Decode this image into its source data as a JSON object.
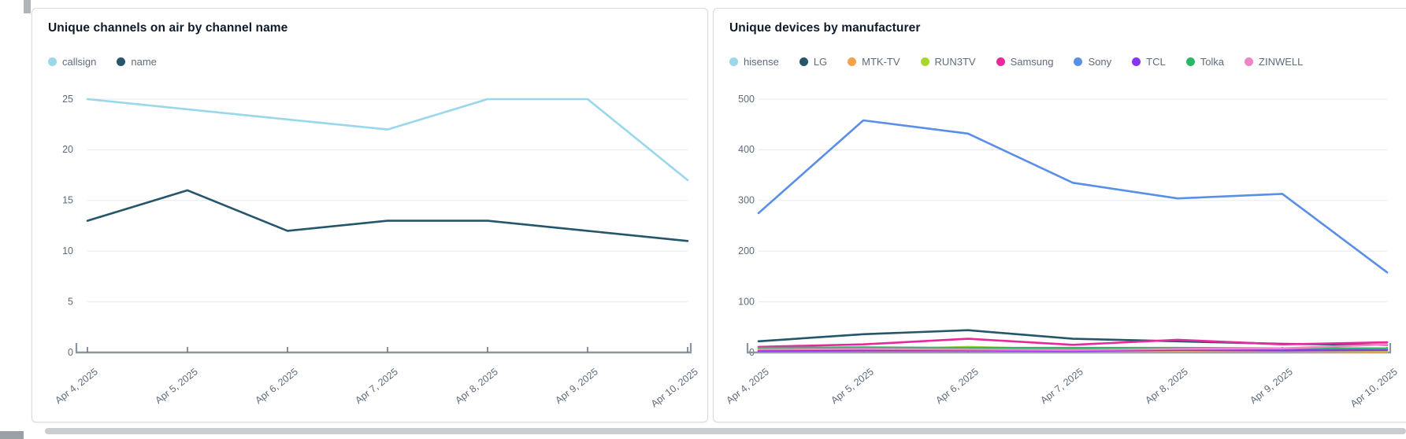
{
  "chart_data": [
    {
      "type": "line",
      "title": "Unique channels on air by channel name",
      "categories": [
        "Apr 4, 2025",
        "Apr 5, 2025",
        "Apr 6, 2025",
        "Apr 7, 2025",
        "Apr 8, 2025",
        "Apr 9, 2025",
        "Apr 10, 2025"
      ],
      "series": [
        {
          "name": "callsign",
          "color": "#99d7ea",
          "values": [
            25,
            24,
            23,
            22,
            25,
            25,
            17
          ]
        },
        {
          "name": "name",
          "color": "#25566b",
          "values": [
            13,
            16,
            12,
            13,
            13,
            12,
            11
          ]
        }
      ],
      "ylim": [
        0,
        25
      ],
      "yticks": [
        0,
        5,
        10,
        15,
        20,
        25
      ],
      "xlabel": "",
      "ylabel": "",
      "grid": true,
      "legend_position": "top-left"
    },
    {
      "type": "line",
      "title": "Unique devices by manufacturer",
      "categories": [
        "Apr 4, 2025",
        "Apr 5, 2025",
        "Apr 6, 2025",
        "Apr 7, 2025",
        "Apr 8, 2025",
        "Apr 9, 2025",
        "Apr 10, 2025"
      ],
      "series": [
        {
          "name": "hisense",
          "color": "#99d7ea",
          "values": [
            7,
            8,
            7,
            6,
            6,
            6,
            6
          ]
        },
        {
          "name": "LG",
          "color": "#25566b",
          "values": [
            22,
            36,
            44,
            27,
            22,
            17,
            15
          ]
        },
        {
          "name": "MTK-TV",
          "color": "#f5a04b",
          "values": [
            2,
            3,
            3,
            2,
            2,
            2,
            1
          ]
        },
        {
          "name": "RUN3TV",
          "color": "#aad62c",
          "values": [
            4,
            5,
            11,
            6,
            5,
            4,
            4
          ]
        },
        {
          "name": "Samsung",
          "color": "#e8289c",
          "values": [
            11,
            16,
            27,
            15,
            25,
            16,
            20
          ]
        },
        {
          "name": "Sony",
          "color": "#5a8fe8",
          "values": [
            275,
            458,
            432,
            335,
            304,
            313,
            158
          ]
        },
        {
          "name": "TCL",
          "color": "#8834f0",
          "values": [
            3,
            4,
            4,
            3,
            5,
            4,
            5
          ]
        },
        {
          "name": "Tolka",
          "color": "#27b966",
          "values": [
            9,
            10,
            9,
            9,
            9,
            8,
            8
          ]
        },
        {
          "name": "ZINWELL",
          "color": "#ef85c5",
          "values": [
            6,
            7,
            6,
            5,
            7,
            8,
            16
          ]
        }
      ],
      "ylim": [
        0,
        500
      ],
      "yticks": [
        0,
        100,
        200,
        300,
        400,
        500
      ],
      "xlabel": "",
      "ylabel": "",
      "grid": true,
      "legend_position": "top-left"
    }
  ],
  "colors": {
    "title_text": "#0f1b2a",
    "axis_label_text": "#5f6b7a",
    "gridline": "#eaecee",
    "axis_line": "#8c959d"
  }
}
